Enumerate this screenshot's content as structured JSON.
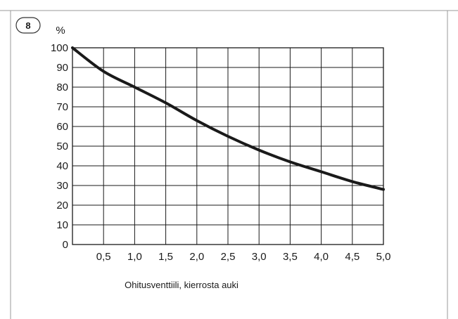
{
  "figure": {
    "number": "8"
  },
  "chart_data": {
    "type": "line",
    "title": "",
    "ylabel": "%",
    "xlabel": "Ohitusventtiili, kierrosta auki",
    "xlim": [
      0,
      5.0
    ],
    "ylim": [
      0,
      100
    ],
    "x_ticks": [
      0.5,
      1.0,
      1.5,
      2.0,
      2.5,
      3.0,
      3.5,
      4.0,
      4.5,
      5.0
    ],
    "x_tick_labels": [
      "0,5",
      "1,0",
      "1,5",
      "2,0",
      "2,5",
      "3,0",
      "3,5",
      "4,0",
      "4,5",
      "5,0"
    ],
    "y_ticks": [
      0,
      10,
      20,
      30,
      40,
      50,
      60,
      70,
      80,
      90,
      100
    ],
    "y_tick_labels": [
      "0",
      "10",
      "20",
      "30",
      "40",
      "50",
      "60",
      "70",
      "80",
      "90",
      "100"
    ],
    "grid": true,
    "legend": "none",
    "series": [
      {
        "x": [
          0,
          0.5,
          1.0,
          1.5,
          2.0,
          2.5,
          3.0,
          3.5,
          4.0,
          4.5,
          5.0
        ],
        "y": [
          100,
          88,
          80,
          72,
          63,
          55,
          48,
          42,
          37,
          32,
          28
        ],
        "color": "#1a1a1a"
      }
    ]
  }
}
